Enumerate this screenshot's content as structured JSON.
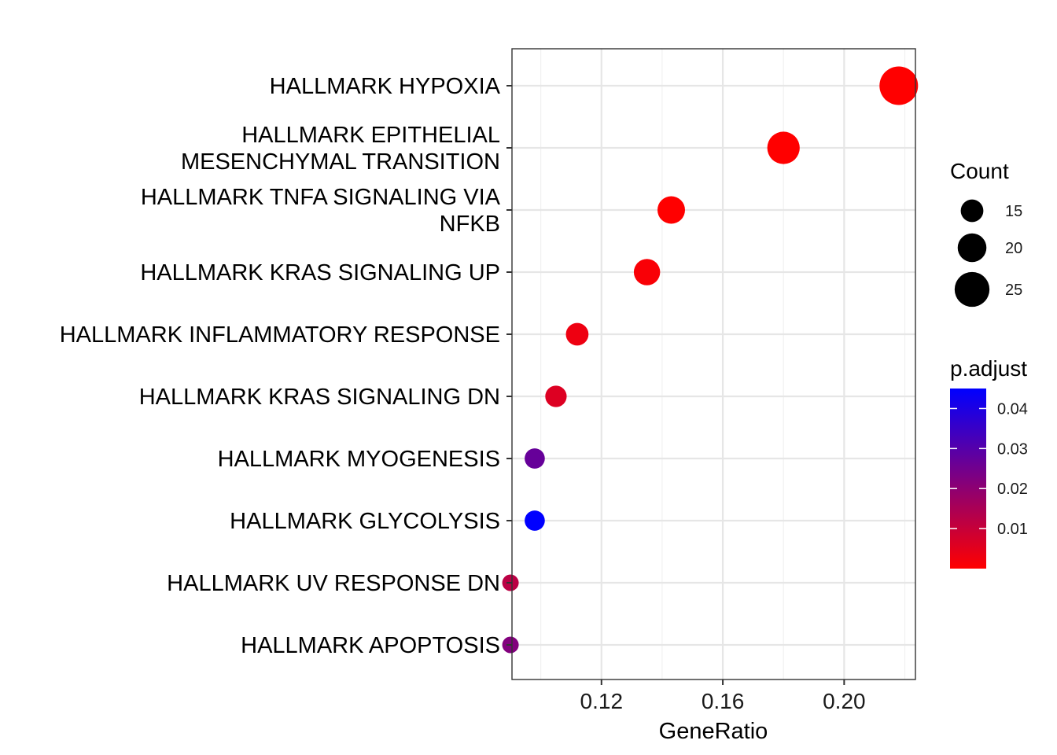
{
  "chart_data": {
    "type": "scatter",
    "title": "",
    "xlabel": "GeneRatio",
    "ylabel": "",
    "xlim": [
      0.0905,
      0.2235
    ],
    "x_ticks": [
      {
        "value": 0.12,
        "label": "0.12"
      },
      {
        "value": 0.16,
        "label": "0.16"
      },
      {
        "value": 0.2,
        "label": "0.20"
      }
    ],
    "grid": true,
    "categories": [
      {
        "label": "HALLMARK HYPOXIA",
        "lines": [
          "HALLMARK HYPOXIA"
        ],
        "gene_ratio": 0.218,
        "count": 28,
        "p_adjust": 0.0
      },
      {
        "label": "HALLMARK EPITHELIAL MESENCHYMAL TRANSITION",
        "lines": [
          "HALLMARK EPITHELIAL",
          "MESENCHYMAL TRANSITION"
        ],
        "gene_ratio": 0.18,
        "count": 23,
        "p_adjust": 0.0
      },
      {
        "label": "HALLMARK TNFA SIGNALING VIA NFKB",
        "lines": [
          "HALLMARK TNFA SIGNALING VIA",
          "NFKB"
        ],
        "gene_ratio": 0.143,
        "count": 19,
        "p_adjust": 0.0
      },
      {
        "label": "HALLMARK KRAS SIGNALING UP",
        "lines": [
          "HALLMARK KRAS SIGNALING UP"
        ],
        "gene_ratio": 0.135,
        "count": 18,
        "p_adjust": 0.001
      },
      {
        "label": "HALLMARK INFLAMMATORY RESPONSE",
        "lines": [
          "HALLMARK INFLAMMATORY RESPONSE"
        ],
        "gene_ratio": 0.112,
        "count": 15,
        "p_adjust": 0.003
      },
      {
        "label": "HALLMARK KRAS SIGNALING DN",
        "lines": [
          "HALLMARK KRAS SIGNALING DN"
        ],
        "gene_ratio": 0.105,
        "count": 14,
        "p_adjust": 0.006
      },
      {
        "label": "HALLMARK MYOGENESIS",
        "lines": [
          "HALLMARK MYOGENESIS"
        ],
        "gene_ratio": 0.098,
        "count": 13,
        "p_adjust": 0.027
      },
      {
        "label": "HALLMARK GLYCOLYSIS",
        "lines": [
          "HALLMARK GLYCOLYSIS"
        ],
        "gene_ratio": 0.098,
        "count": 13,
        "p_adjust": 0.045
      },
      {
        "label": "HALLMARK UV RESPONSE DN",
        "lines": [
          "HALLMARK UV RESPONSE DN"
        ],
        "gene_ratio": 0.09,
        "count": 10,
        "p_adjust": 0.012
      },
      {
        "label": "HALLMARK APOPTOSIS",
        "lines": [
          "HALLMARK APOPTOSIS"
        ],
        "gene_ratio": 0.09,
        "count": 10,
        "p_adjust": 0.022
      }
    ],
    "legend": {
      "placement": "right",
      "size": {
        "title": "Count",
        "entries": [
          {
            "value": 15,
            "label": "15"
          },
          {
            "value": 20,
            "label": "20"
          },
          {
            "value": 25,
            "label": "25"
          }
        ]
      },
      "color": {
        "title": "p.adjust",
        "low_color": "#ff0000",
        "high_color": "#0000ff",
        "range": [
          0.0,
          0.045
        ],
        "ticks": [
          {
            "value": 0.01,
            "label": "0.01"
          },
          {
            "value": 0.02,
            "label": "0.02"
          },
          {
            "value": 0.03,
            "label": "0.03"
          },
          {
            "value": 0.04,
            "label": "0.04"
          }
        ]
      }
    }
  }
}
